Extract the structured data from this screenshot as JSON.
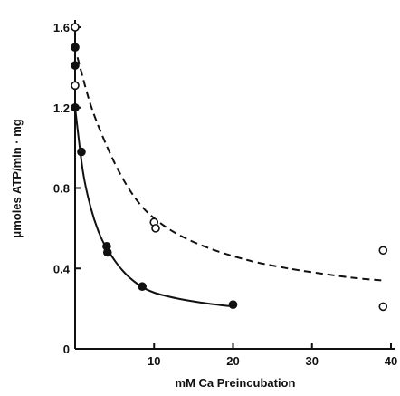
{
  "chart_data": {
    "type": "scatter",
    "title": "",
    "xlabel": "mM Ca Preincubation",
    "ylabel": "μmoles ATP/min · mg",
    "xlim": [
      0,
      40
    ],
    "ylim": [
      0,
      1.6
    ],
    "x_ticks": [
      0,
      10,
      20,
      30,
      40
    ],
    "y_ticks": [
      0,
      0.4,
      0.8,
      1.2,
      1.6
    ],
    "x_tick_labels": [
      "",
      "10",
      "20",
      "30",
      "40"
    ],
    "y_tick_labels": [
      "0",
      "0.4",
      "0.8",
      "1.2",
      "1.6"
    ],
    "grid": false,
    "legend": "none",
    "series": [
      {
        "marker": "filled-circle",
        "line_style": "solid",
        "color": "#111111",
        "points": [
          {
            "x": 0,
            "y": 1.5
          },
          {
            "x": 0,
            "y": 1.41
          },
          {
            "x": 0,
            "y": 1.2
          },
          {
            "x": 0.8,
            "y": 0.98
          },
          {
            "x": 4.0,
            "y": 0.51
          },
          {
            "x": 4.1,
            "y": 0.48
          },
          {
            "x": 8.5,
            "y": 0.31
          },
          {
            "x": 20.0,
            "y": 0.22
          }
        ],
        "curve": [
          {
            "x": 0,
            "y": 1.2
          },
          {
            "x": 1,
            "y": 0.88
          },
          {
            "x": 2,
            "y": 0.7
          },
          {
            "x": 3,
            "y": 0.58
          },
          {
            "x": 4,
            "y": 0.5
          },
          {
            "x": 6,
            "y": 0.39
          },
          {
            "x": 8,
            "y": 0.32
          },
          {
            "x": 10,
            "y": 0.28
          },
          {
            "x": 13,
            "y": 0.25
          },
          {
            "x": 16,
            "y": 0.23
          },
          {
            "x": 20,
            "y": 0.21
          }
        ]
      },
      {
        "marker": "open-circle",
        "line_style": "dashed",
        "color": "#111111",
        "points": [
          {
            "x": 0,
            "y": 1.6
          },
          {
            "x": 0,
            "y": 1.31
          },
          {
            "x": 10.0,
            "y": 0.63
          },
          {
            "x": 10.2,
            "y": 0.6
          },
          {
            "x": 39.0,
            "y": 0.49
          },
          {
            "x": 39.0,
            "y": 0.21
          }
        ],
        "curve": [
          {
            "x": 0.3,
            "y": 1.45
          },
          {
            "x": 2,
            "y": 1.21
          },
          {
            "x": 4,
            "y": 1.01
          },
          {
            "x": 6,
            "y": 0.85
          },
          {
            "x": 8,
            "y": 0.73
          },
          {
            "x": 10,
            "y": 0.65
          },
          {
            "x": 13,
            "y": 0.57
          },
          {
            "x": 17,
            "y": 0.5
          },
          {
            "x": 22,
            "y": 0.44
          },
          {
            "x": 27,
            "y": 0.4
          },
          {
            "x": 32,
            "y": 0.37
          },
          {
            "x": 36,
            "y": 0.35
          },
          {
            "x": 39,
            "y": 0.34
          }
        ]
      }
    ]
  }
}
